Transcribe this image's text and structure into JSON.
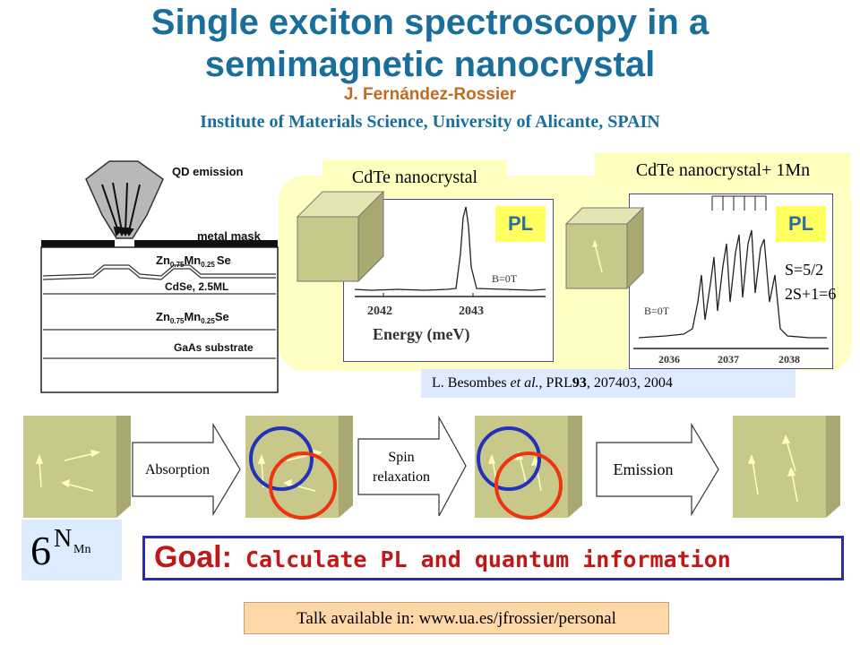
{
  "header": {
    "title_line1": "Single exciton spectroscopy in a",
    "title_line2": "semimagnetic nanocrystal",
    "author": "J. Fernández-Rossier",
    "institute": "Institute of Materials Science,  University of Alicante, SPAIN"
  },
  "diagram": {
    "qd_emission": "QD emission",
    "metal_mask": "metal mask",
    "layer1": "Zn0.75Mn0.25Se",
    "layer1_main": "Zn",
    "layer1_sub1": "0.75",
    "layer1_mn": "Mn",
    "layer1_sub2": "0.25",
    "layer1_se": "Se",
    "layer2": "CdSe, 2.5ML",
    "layer3_main": "Zn",
    "layer3_sub1": "0.75",
    "layer3_mn": "Mn",
    "layer3_sub2": "0.25",
    "layer3_se": "Se",
    "substrate": "GaAs substrate"
  },
  "spectra": {
    "left_label": "CdTe nanocrystal",
    "right_label": "CdTe nanocrystal+ 1Mn",
    "pl_label": "PL",
    "left_field": "B=0T",
    "right_field": "B=0T",
    "left_ticks": [
      "2042",
      "2043"
    ],
    "left_axis_label": "Energy (meV)",
    "right_ticks": [
      "2036",
      "2037",
      "2038"
    ],
    "spin_line1": "S=5/2",
    "spin_line2": "2S+1=6",
    "citation_authors": "L. Besombes ",
    "citation_etal": "et al.",
    "citation_journal": ", PRL",
    "citation_volume": "93",
    "citation_rest": ", 207403, 2004"
  },
  "process": {
    "absorption": "Absorption",
    "spin_relaxation_line1": "Spin",
    "spin_relaxation_line2": "relaxation",
    "emission": "Emission"
  },
  "states": {
    "base": "6",
    "exponent": "N",
    "exponent_sub": "Mn"
  },
  "goal": {
    "label": "Goal:",
    "text": " Calculate PL and quantum information"
  },
  "footer": {
    "talk": "Talk available in: www.ua.es/jfrossier/personal"
  },
  "colors": {
    "title": "#1a6e9b",
    "author": "#c06c20",
    "goal": "#c01818",
    "cube_front": "#c8c88a",
    "cube_top": "#e4e4b0",
    "cube_side": "#a8a870",
    "ring_blue": "#2233bb",
    "ring_red": "#ee3311"
  }
}
